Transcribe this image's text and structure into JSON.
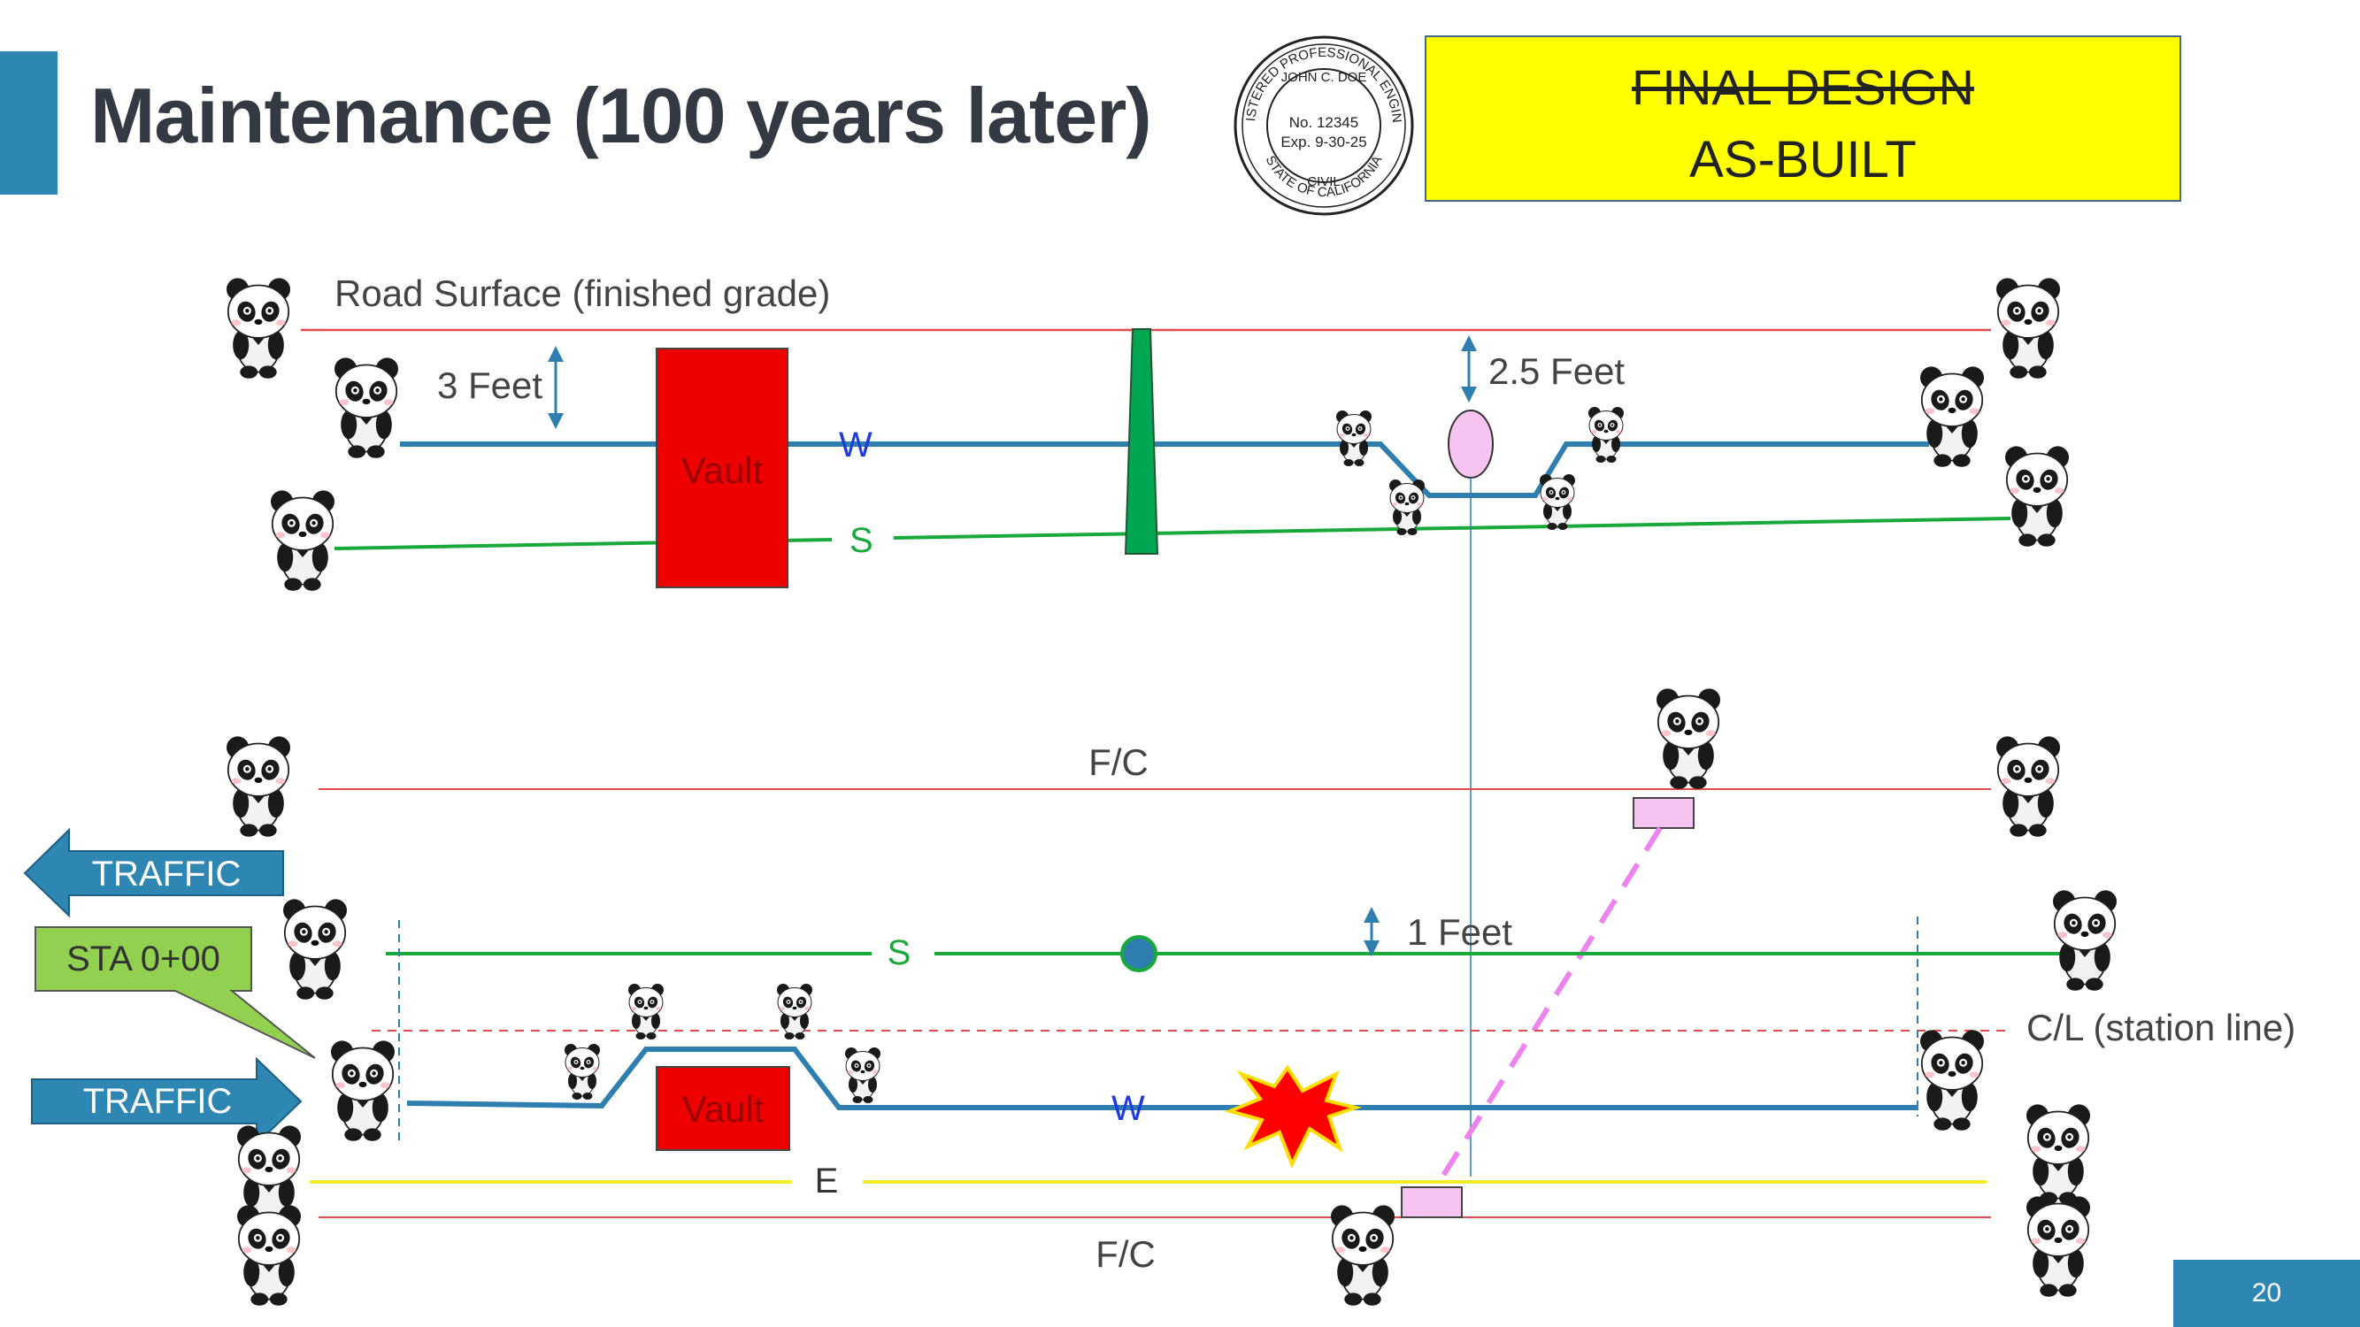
{
  "slide": {
    "title": "Maintenance (100 years later)",
    "page_number": "20"
  },
  "status_box": {
    "struck_label": "FINAL DESIGN",
    "current_label": "AS-BUILT",
    "background": "#ffff00"
  },
  "seal": {
    "ring_text_top": "REGISTERED PROFESSIONAL ENGINEER",
    "name": "JOHN C. DOE",
    "number": "No. 12345",
    "expiry": "Exp. 9-30-25",
    "discipline": "CIVIL",
    "state": "STATE OF CALIFORNIA"
  },
  "profile_view": {
    "road_label": "Road Surface (finished grade)",
    "depth_label": "3 Feet",
    "clearance_label": "2.5 Feet",
    "vault_label": "Vault",
    "water_label": "W",
    "sewer_label": "S"
  },
  "plan_view": {
    "curb_top_label": "F/C",
    "curb_bottom_label": "F/C",
    "sewer_label": "S",
    "water_label": "W",
    "electric_label": "E",
    "vault_label": "Vault",
    "separation_label": "1 Feet",
    "centerline_label": "C/L (station line)",
    "station_label": "STA 0+00",
    "traffic_left_label": "TRAFFIC",
    "traffic_right_label": "TRAFFIC"
  },
  "colors": {
    "accent": "#2e86b3",
    "water": "#2e7fb0",
    "sewer": "#19a83a",
    "road": "#e24b4b",
    "electric": "#f2ec2a",
    "vault": "#ee0000",
    "station_callout": "#92d050",
    "bend_marker": "#f7c4f2",
    "conflict_burst": "#ff0000"
  }
}
